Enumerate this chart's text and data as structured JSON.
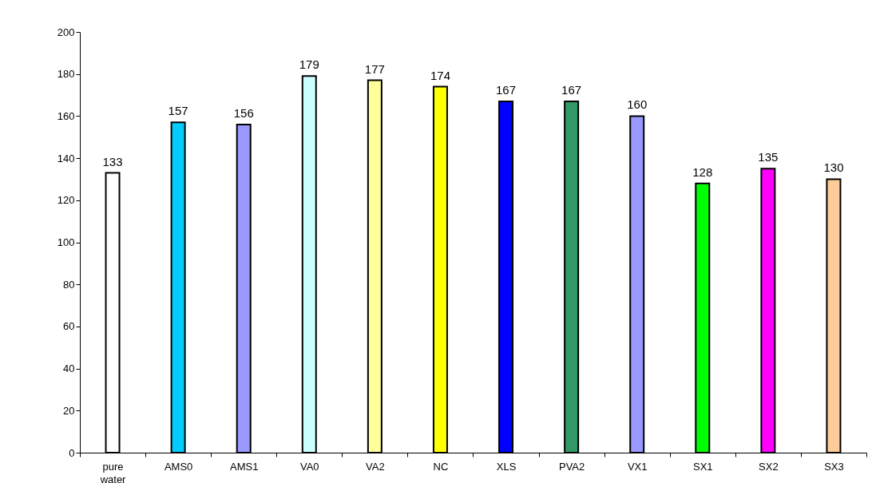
{
  "chart_data": {
    "type": "bar",
    "categories": [
      "pure water",
      "AMS0",
      "AMS1",
      "VA0",
      "VA2",
      "NC",
      "XLS",
      "PVA2",
      "VX1",
      "SX1",
      "SX2",
      "SX3"
    ],
    "values": [
      133,
      157,
      156,
      179,
      177,
      174,
      167,
      167,
      160,
      128,
      135,
      130
    ],
    "colors": [
      "#ffffff",
      "#00ccff",
      "#9999ff",
      "#ccffff",
      "#ffff99",
      "#ffff00",
      "#0000ff",
      "#339966",
      "#9999ff",
      "#00ff00",
      "#ff00ff",
      "#ffcc99"
    ],
    "ylim": [
      0,
      200
    ],
    "yticks": [
      0,
      20,
      40,
      60,
      80,
      100,
      120,
      140,
      160,
      180,
      200
    ],
    "data_labels": true,
    "grid": false
  }
}
